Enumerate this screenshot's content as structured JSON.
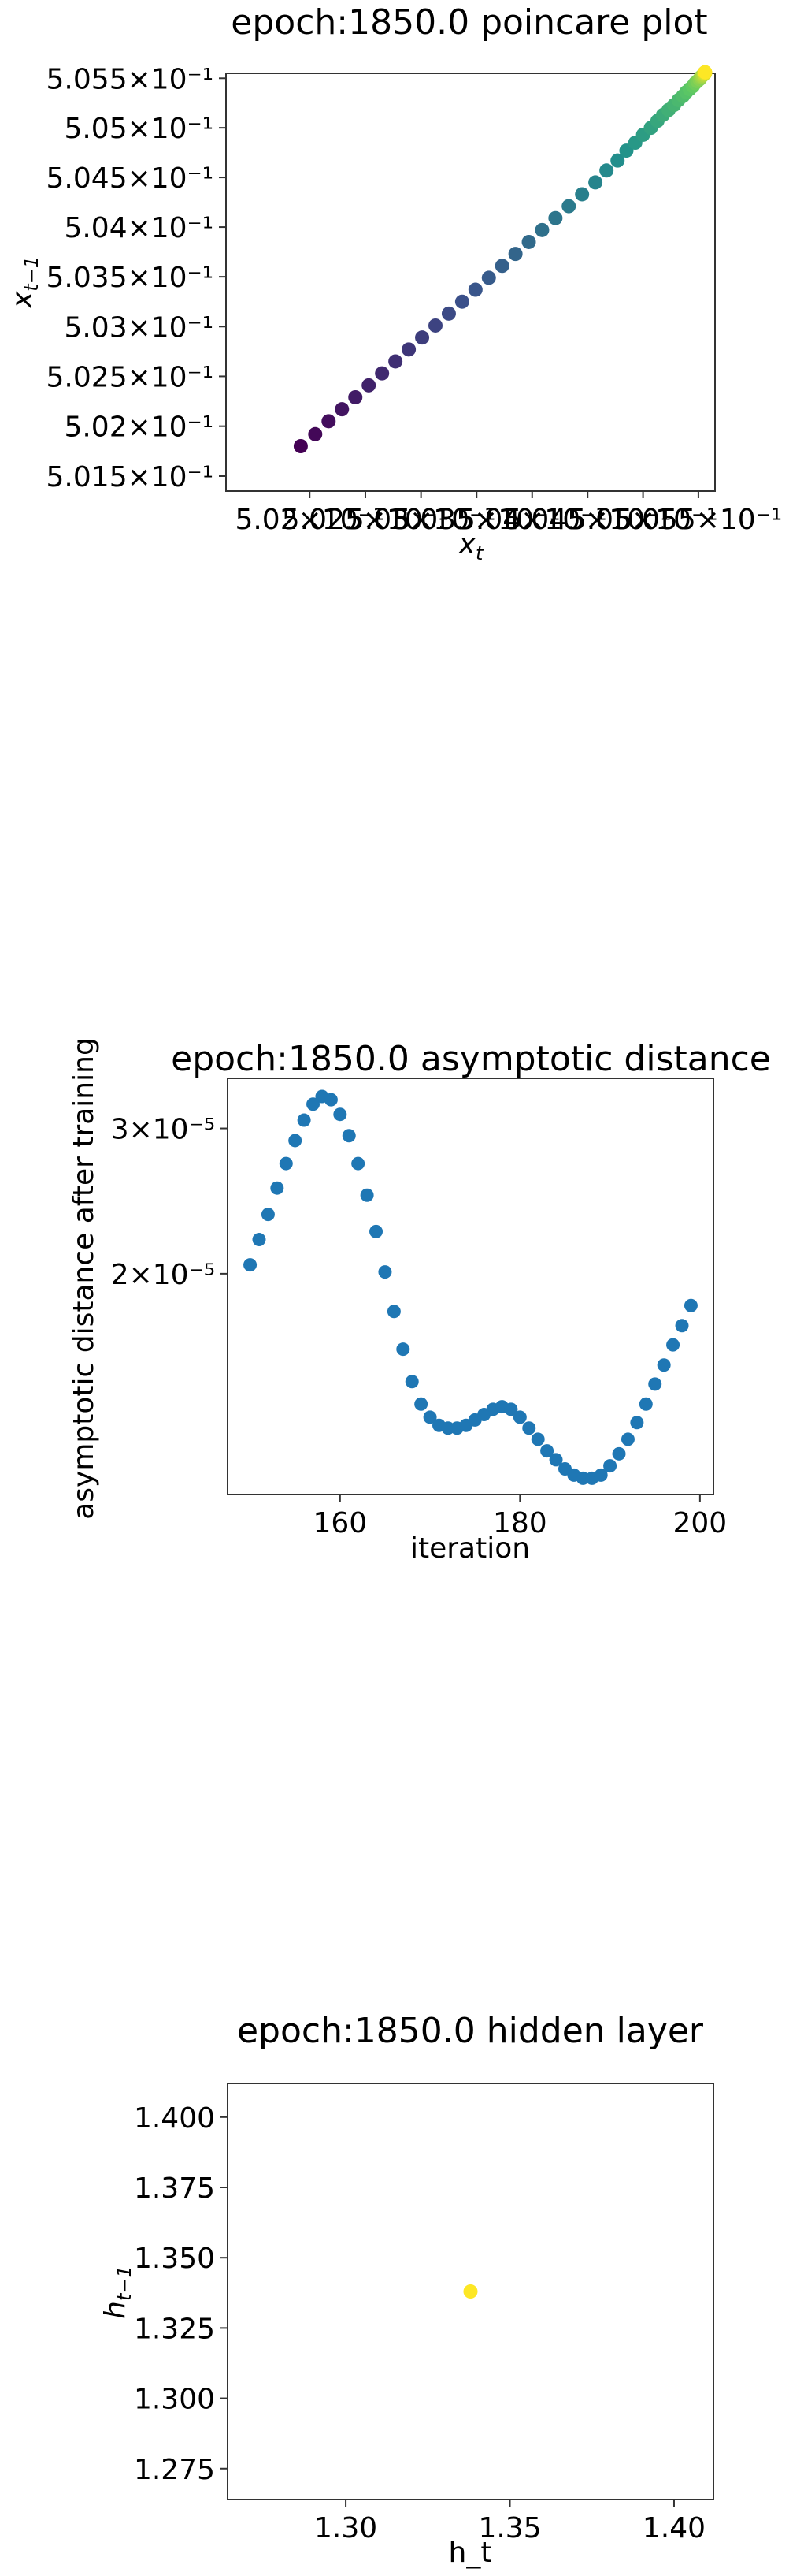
{
  "chart_data": [
    {
      "type": "scatter",
      "title": "epoch:1850.0 poincare plot",
      "xlabel": "x_t",
      "ylabel": "x_{t−1}",
      "xscale": "log",
      "yscale": "log",
      "xlim": [
        0.50125,
        0.50565
      ],
      "ylim": [
        0.50135,
        0.50555
      ],
      "xticks": [
        0.502,
        0.5025,
        0.503,
        0.5035,
        0.504,
        0.5045,
        0.505,
        0.5055
      ],
      "xtick_labels": [
        "5.02×10⁻¹",
        "5.025×10⁻¹",
        "5.03×10⁻¹",
        "5.035×10⁻¹",
        "5.04×10⁻¹",
        "5.045×10⁻¹",
        "5.05×10⁻¹",
        "5.055×10⁻¹"
      ],
      "yticks": [
        0.5015,
        0.502,
        0.5025,
        0.503,
        0.5035,
        0.504,
        0.5045,
        0.505,
        0.5055
      ],
      "ytick_labels": [
        "5.015×10⁻¹",
        "5.02×10⁻¹",
        "5.025×10⁻¹",
        "5.03×10⁻¹",
        "5.035×10⁻¹",
        "5.04×10⁻¹",
        "5.045×10⁻¹",
        "5.05×10⁻¹",
        "5.055×10⁻¹"
      ],
      "colormap": [
        "#440154",
        "#3b528b",
        "#21918c",
        "#5ec962",
        "#fde725"
      ],
      "marker_color_start": "#440154",
      "marker_color_end": "#fde725",
      "x": [
        0.50192,
        0.50205,
        0.50217,
        0.50229,
        0.50241,
        0.50253,
        0.50265,
        0.50277,
        0.50289,
        0.50301,
        0.50313,
        0.50325,
        0.50337,
        0.50349,
        0.50361,
        0.50373,
        0.50385,
        0.50397,
        0.50409,
        0.50421,
        0.50433,
        0.50445,
        0.50457,
        0.50467,
        0.50477,
        0.50485,
        0.50493,
        0.505,
        0.50507,
        0.50513,
        0.50518,
        0.50523,
        0.50528,
        0.50532,
        0.50536,
        0.50539,
        0.50542,
        0.50545,
        0.50547,
        0.50549,
        0.50551,
        0.50552,
        0.50553,
        0.50554,
        0.50555,
        0.50555,
        0.50556,
        0.50556,
        0.50556,
        0.50556
      ],
      "y": [
        0.5018,
        0.50192,
        0.50205,
        0.50217,
        0.50229,
        0.50241,
        0.50253,
        0.50265,
        0.50277,
        0.50289,
        0.50301,
        0.50313,
        0.50325,
        0.50337,
        0.50349,
        0.50361,
        0.50373,
        0.50385,
        0.50397,
        0.50409,
        0.50421,
        0.50433,
        0.50445,
        0.50457,
        0.50467,
        0.50477,
        0.50485,
        0.50493,
        0.505,
        0.50507,
        0.50513,
        0.50518,
        0.50523,
        0.50528,
        0.50532,
        0.50536,
        0.50539,
        0.50542,
        0.50545,
        0.50547,
        0.50549,
        0.50551,
        0.50552,
        0.50553,
        0.50554,
        0.50555,
        0.50555,
        0.50556,
        0.50556,
        0.50556
      ]
    },
    {
      "type": "scatter",
      "title": "epoch:1850.0 asymptotic distance",
      "xlabel": "iteration",
      "ylabel": "asymptotic distance after training",
      "yscale": "log",
      "xlim": [
        147.5,
        201.5
      ],
      "ylim": [
        1.08e-05,
        3.45e-05
      ],
      "xticks": [
        160,
        180,
        200
      ],
      "xtick_labels": [
        "160",
        "180",
        "200"
      ],
      "yticks": [
        2e-05,
        3e-05
      ],
      "ytick_labels": [
        "2×10⁻⁵",
        "3×10⁻⁵"
      ],
      "marker_color": "#1f77b4",
      "x": [
        150,
        151,
        152,
        153,
        154,
        155,
        156,
        157,
        158,
        159,
        160,
        161,
        162,
        163,
        164,
        165,
        166,
        167,
        168,
        169,
        170,
        171,
        172,
        173,
        174,
        175,
        176,
        177,
        178,
        179,
        180,
        181,
        182,
        183,
        184,
        185,
        186,
        187,
        188,
        189,
        190,
        191,
        192,
        193,
        194,
        195,
        196,
        197,
        198,
        199
      ],
      "y": [
        2.05e-05,
        2.2e-05,
        2.36e-05,
        2.54e-05,
        2.72e-05,
        2.9e-05,
        3.07e-05,
        3.21e-05,
        3.28e-05,
        3.25e-05,
        3.12e-05,
        2.94e-05,
        2.72e-05,
        2.49e-05,
        2.25e-05,
        2.01e-05,
        1.8e-05,
        1.62e-05,
        1.48e-05,
        1.39e-05,
        1.34e-05,
        1.31e-05,
        1.3e-05,
        1.3e-05,
        1.31e-05,
        1.33e-05,
        1.35e-05,
        1.37e-05,
        1.38e-05,
        1.37e-05,
        1.34e-05,
        1.3e-05,
        1.26e-05,
        1.22e-05,
        1.19e-05,
        1.16e-05,
        1.14e-05,
        1.13e-05,
        1.13e-05,
        1.14e-05,
        1.17e-05,
        1.21e-05,
        1.26e-05,
        1.32e-05,
        1.39e-05,
        1.47e-05,
        1.55e-05,
        1.64e-05,
        1.73e-05,
        1.83e-05
      ]
    },
    {
      "type": "scatter",
      "title": "epoch:1850.0 hidden layer",
      "xlabel": "h_t",
      "ylabel": "h_{t−1}",
      "xlim": [
        1.264,
        1.412
      ],
      "ylim": [
        1.264,
        1.412
      ],
      "xticks": [
        1.3,
        1.35,
        1.4
      ],
      "xtick_labels": [
        "1.30",
        "1.35",
        "1.40"
      ],
      "yticks": [
        1.275,
        1.3,
        1.325,
        1.35,
        1.375,
        1.4
      ],
      "ytick_labels": [
        "1.275",
        "1.300",
        "1.325",
        "1.350",
        "1.375",
        "1.400"
      ],
      "marker_color": "#fde725",
      "x": [
        1.338
      ],
      "y": [
        1.338
      ]
    }
  ]
}
